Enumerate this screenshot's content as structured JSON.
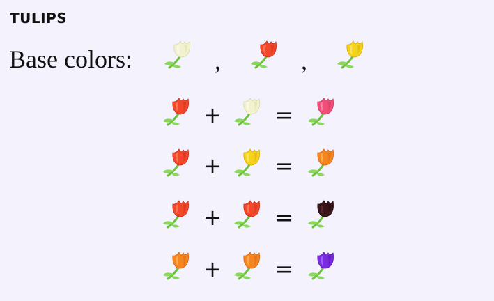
{
  "heading": "TULIPS",
  "base_label": "Base colors:",
  "separator": ",",
  "colors": {
    "white": {
      "petal": "#f2f2cf",
      "light": "#fbfbe8",
      "dark": "#d9d9a8"
    },
    "red": {
      "petal": "#f2472a",
      "light": "#ff7a55",
      "dark": "#c42a18"
    },
    "yellow": {
      "petal": "#f5d21c",
      "light": "#ffe860",
      "dark": "#d4a808"
    },
    "pink": {
      "petal": "#f04f7a",
      "light": "#ff86a6",
      "dark": "#c8305a"
    },
    "orange": {
      "petal": "#f5861f",
      "light": "#ffb052",
      "dark": "#d45f10"
    },
    "black": {
      "petal": "#3a1418",
      "light": "#5e2a30",
      "dark": "#1e0608"
    },
    "purple": {
      "petal": "#7a2ae0",
      "light": "#a564ff",
      "dark": "#5410b0"
    },
    "stem": "#6cc23a",
    "leaf": "#8ad858"
  },
  "base_colors": [
    "white",
    "red",
    "yellow"
  ],
  "plus_symbol": "+",
  "equals_symbol": "=",
  "equations": [
    {
      "a": "red",
      "b": "white",
      "result": "pink"
    },
    {
      "a": "red",
      "b": "yellow",
      "result": "orange"
    },
    {
      "a": "red",
      "b": "red",
      "result": "black"
    },
    {
      "a": "orange",
      "b": "orange",
      "result": "purple"
    }
  ]
}
